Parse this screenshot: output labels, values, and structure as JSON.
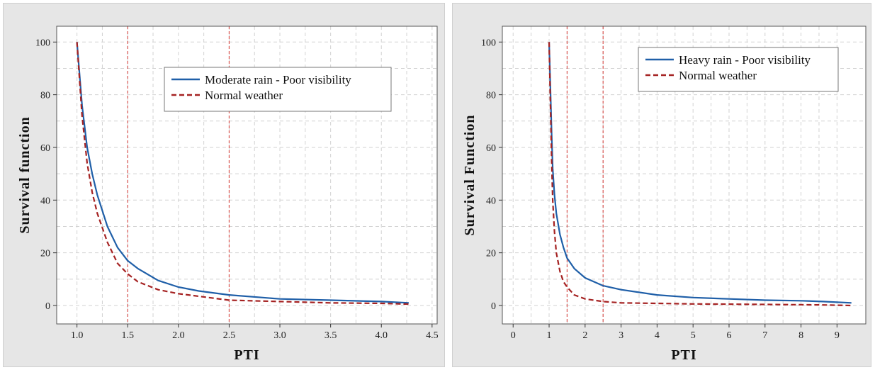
{
  "chart_data": [
    {
      "type": "line",
      "xlabel": "PTI",
      "ylabel": "Survival function",
      "xlim": [
        0.8,
        4.55
      ],
      "ylim": [
        -7,
        106
      ],
      "xticks": [
        1.0,
        1.5,
        2.0,
        2.5,
        3.0,
        3.5,
        4.0,
        4.5
      ],
      "xtick_labels": [
        "1.0",
        "1.5",
        "2.0",
        "2.5",
        "3.0",
        "3.5",
        "4.0",
        "4.5"
      ],
      "yticks": [
        0,
        20,
        40,
        60,
        80,
        100
      ],
      "ytick_labels": [
        "0",
        "20",
        "40",
        "60",
        "80",
        "100"
      ],
      "reference_lines_x": [
        1.5,
        2.5
      ],
      "grid": true,
      "legend_position": "top-right",
      "series": [
        {
          "name": "Moderate rain - Poor visibility",
          "color": "#1f5fa8",
          "style": "solid",
          "x": [
            1.0,
            1.05,
            1.1,
            1.15,
            1.2,
            1.3,
            1.4,
            1.5,
            1.6,
            1.8,
            2.0,
            2.2,
            2.5,
            3.0,
            3.5,
            4.0,
            4.27
          ],
          "y": [
            100,
            76,
            60,
            50,
            42,
            30,
            22,
            17,
            14,
            9.5,
            7,
            5.5,
            4,
            2.5,
            2,
            1.5,
            1
          ]
        },
        {
          "name": "Normal weather",
          "color": "#a52222",
          "style": "dashed",
          "x": [
            1.0,
            1.05,
            1.1,
            1.15,
            1.2,
            1.3,
            1.4,
            1.5,
            1.6,
            1.8,
            2.0,
            2.2,
            2.5,
            3.0,
            3.5,
            4.0,
            4.27
          ],
          "y": [
            100,
            72,
            54,
            43,
            35,
            24,
            16,
            12,
            9,
            6,
            4.5,
            3.5,
            2,
            1.5,
            1,
            0.8,
            0.5
          ]
        }
      ]
    },
    {
      "type": "line",
      "xlabel": "PTI",
      "ylabel": "Survival Function",
      "xlim": [
        -0.3,
        9.8
      ],
      "ylim": [
        -7,
        106
      ],
      "xticks": [
        0,
        1,
        2,
        3,
        4,
        5,
        6,
        7,
        8,
        9
      ],
      "xtick_labels": [
        "0",
        "1",
        "2",
        "3",
        "4",
        "5",
        "6",
        "7",
        "8",
        "9"
      ],
      "yticks": [
        0,
        20,
        40,
        60,
        80,
        100
      ],
      "ytick_labels": [
        "0",
        "20",
        "40",
        "60",
        "80",
        "100"
      ],
      "reference_lines_x": [
        1.5,
        2.5
      ],
      "grid": true,
      "legend_position": "top-right",
      "series": [
        {
          "name": "Heavy rain - Poor visibility",
          "color": "#1f5fa8",
          "style": "solid",
          "x": [
            1.0,
            1.03,
            1.07,
            1.1,
            1.15,
            1.2,
            1.3,
            1.4,
            1.5,
            1.7,
            2.0,
            2.5,
            3.0,
            4.0,
            5.0,
            6.0,
            7.0,
            8.0,
            8.6,
            9.4
          ],
          "y": [
            100,
            85,
            65,
            52,
            42,
            35,
            27,
            22,
            18,
            14,
            10.5,
            7.5,
            6,
            4,
            3,
            2.5,
            2,
            1.8,
            1.5,
            1
          ]
        },
        {
          "name": "Normal weather",
          "color": "#a52222",
          "style": "dashed",
          "x": [
            1.0,
            1.03,
            1.07,
            1.1,
            1.15,
            1.2,
            1.3,
            1.4,
            1.5,
            1.7,
            2.0,
            2.5,
            3.0,
            4.0,
            5.0,
            6.0,
            7.0,
            8.0,
            8.6,
            9.4
          ],
          "y": [
            100,
            80,
            55,
            40,
            28,
            20,
            13,
            9,
            7,
            4,
            2.5,
            1.5,
            1,
            0.8,
            0.6,
            0.5,
            0.4,
            0.3,
            0.2,
            0
          ]
        }
      ]
    }
  ],
  "colors": {
    "panel_background": "#e6e6e6",
    "plot_background": "#ffffff",
    "reference_line": "#d9534f"
  }
}
